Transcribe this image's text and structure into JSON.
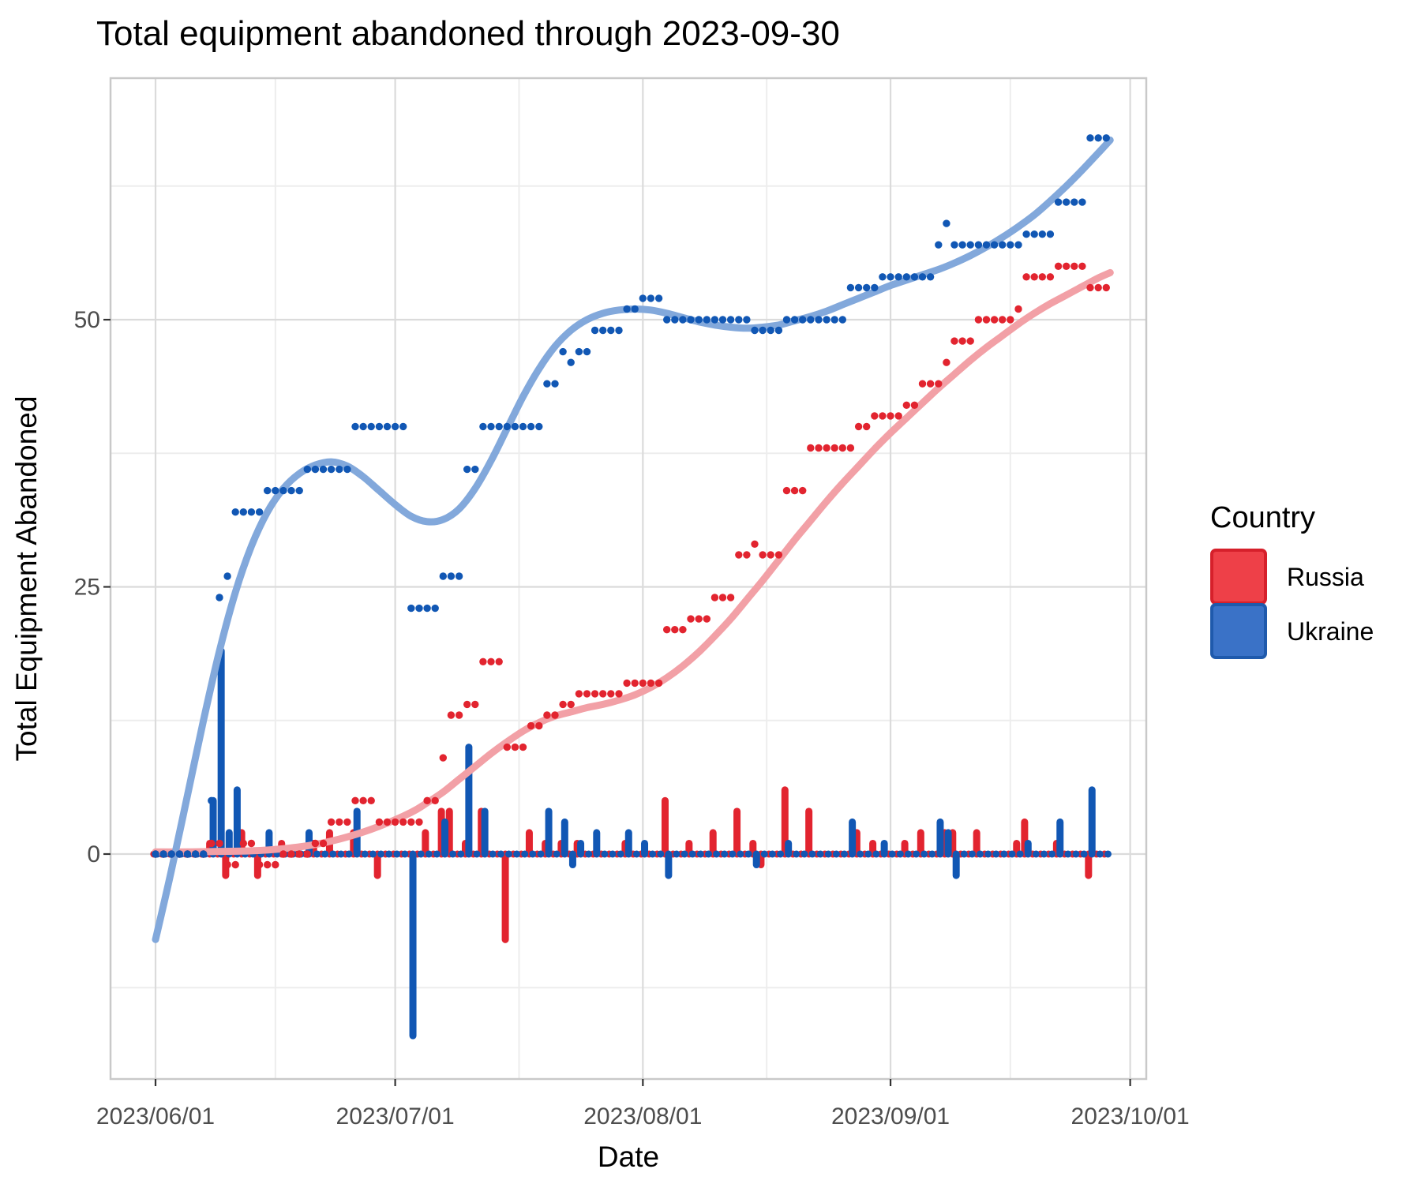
{
  "title": "Total equipment abandoned through 2023-09-30",
  "axes": {
    "x_label": "Date",
    "y_label": "Total Equipment Abandoned",
    "x_major_ticks": [
      {
        "day": 0,
        "label": "2023/06/01"
      },
      {
        "day": 30,
        "label": "2023/07/01"
      },
      {
        "day": 61,
        "label": "2023/08/01"
      },
      {
        "day": 92,
        "label": "2023/09/01"
      },
      {
        "day": 122,
        "label": "2023/10/01"
      }
    ],
    "x_minor_tick_days": [
      15,
      45.5,
      76.5,
      107
    ],
    "y_major_ticks": [
      0,
      25,
      50
    ],
    "y_minor_ticks": [
      -12.5,
      12.5,
      37.5,
      62.5
    ]
  },
  "legend": {
    "title": "Country",
    "items": [
      {
        "label": "Russia",
        "fill": "#ee4048",
        "border": "#d6202b"
      },
      {
        "label": "Ukraine",
        "fill": "#3a72c7",
        "border": "#1f5aac"
      }
    ]
  },
  "colors": {
    "russia": "#e2242f",
    "ukraine": "#1157b4",
    "russia_smooth": "#f2a0a6",
    "ukraine_smooth": "#82a8db",
    "grid_major": "#dbdbdb",
    "grid_minor": "#ededed",
    "panel_border": "#c9c9c9",
    "tick_mark": "#333333"
  },
  "chart_data": {
    "type": [
      "scatter",
      "bar",
      "line"
    ],
    "title": "Total equipment abandoned through 2023-09-30",
    "xlabel": "Date",
    "ylabel": "Total Equipment Abandoned",
    "x_start_date": "2023-06-01",
    "x_days_total": 122,
    "ylim": [
      -21,
      72.5
    ],
    "grid": true,
    "legend_position": "right",
    "bars_meaning": "daily change (difference of cumulative); zero-change days render as small dots on the y=0 baseline, Russia dodged left / Ukraine dodged right",
    "series": [
      {
        "name": "Russia",
        "cumulative_by_day": [
          0,
          0,
          0,
          0,
          0,
          0,
          0,
          1,
          1,
          -1,
          -1,
          1,
          1,
          -1,
          -1,
          -1,
          0,
          0,
          0,
          0,
          1,
          1,
          3,
          3,
          3,
          5,
          5,
          5,
          3,
          3,
          3,
          3,
          3,
          3,
          5,
          5,
          9,
          13,
          13,
          14,
          14,
          18,
          18,
          18,
          10,
          10,
          10,
          12,
          12,
          13,
          13,
          14,
          14,
          15,
          15,
          15,
          15,
          15,
          15,
          16,
          16,
          16,
          16,
          16,
          21,
          21,
          21,
          22,
          22,
          22,
          24,
          24,
          24,
          28,
          28,
          29,
          28,
          28,
          28,
          34,
          34,
          34,
          38,
          38,
          38,
          38,
          38,
          38,
          40,
          40,
          41,
          41,
          41,
          41,
          42,
          42,
          44,
          44,
          44,
          46,
          48,
          48,
          48,
          50,
          50,
          50,
          50,
          50,
          51,
          54,
          54,
          54,
          54,
          55,
          55,
          55,
          55,
          53,
          53,
          53
        ]
      },
      {
        "name": "Ukraine",
        "cumulative_by_day": [
          0,
          0,
          0,
          0,
          0,
          0,
          0,
          5,
          24,
          26,
          32,
          32,
          32,
          32,
          34,
          34,
          34,
          34,
          34,
          36,
          36,
          36,
          36,
          36,
          36,
          40,
          40,
          40,
          40,
          40,
          40,
          40,
          23,
          23,
          23,
          23,
          26,
          26,
          26,
          36,
          36,
          40,
          40,
          40,
          40,
          40,
          40,
          40,
          40,
          44,
          44,
          47,
          46,
          47,
          47,
          49,
          49,
          49,
          49,
          51,
          51,
          52,
          52,
          52,
          50,
          50,
          50,
          50,
          50,
          50,
          50,
          50,
          50,
          50,
          50,
          49,
          49,
          49,
          49,
          50,
          50,
          50,
          50,
          50,
          50,
          50,
          50,
          53,
          53,
          53,
          53,
          54,
          54,
          54,
          54,
          54,
          54,
          54,
          57,
          59,
          57,
          57,
          57,
          57,
          57,
          57,
          57,
          57,
          57,
          58,
          58,
          58,
          58,
          61,
          61,
          61,
          61,
          67,
          67,
          67
        ]
      }
    ],
    "smooth_curves": {
      "Russia": [
        [
          0,
          0.2
        ],
        [
          4,
          0.2
        ],
        [
          8,
          0.25
        ],
        [
          12,
          0.3
        ],
        [
          16,
          0.5
        ],
        [
          20,
          0.9
        ],
        [
          24,
          1.6
        ],
        [
          28,
          2.6
        ],
        [
          32,
          3.9
        ],
        [
          34,
          4.8
        ],
        [
          36,
          5.8
        ],
        [
          38,
          7
        ],
        [
          40,
          8.2
        ],
        [
          42,
          9.4
        ],
        [
          44,
          10.5
        ],
        [
          46,
          11.5
        ],
        [
          48,
          12.3
        ],
        [
          50,
          12.9
        ],
        [
          52,
          13.3
        ],
        [
          54,
          13.7
        ],
        [
          56,
          14
        ],
        [
          58,
          14.4
        ],
        [
          60,
          14.9
        ],
        [
          62,
          15.6
        ],
        [
          64,
          16.5
        ],
        [
          66,
          17.6
        ],
        [
          68,
          18.9
        ],
        [
          70,
          20.4
        ],
        [
          72,
          22
        ],
        [
          74,
          23.8
        ],
        [
          76,
          25.6
        ],
        [
          78,
          27.5
        ],
        [
          80,
          29.4
        ],
        [
          82,
          31.2
        ],
        [
          84,
          33
        ],
        [
          86,
          34.7
        ],
        [
          88,
          36.3
        ],
        [
          90,
          37.9
        ],
        [
          92,
          39.4
        ],
        [
          94,
          40.8
        ],
        [
          96,
          42.2
        ],
        [
          98,
          43.6
        ],
        [
          100,
          44.9
        ],
        [
          102,
          46.2
        ],
        [
          104,
          47.4
        ],
        [
          106,
          48.5
        ],
        [
          108,
          49.6
        ],
        [
          110,
          50.6
        ],
        [
          112,
          51.5
        ],
        [
          114,
          52.3
        ],
        [
          116,
          53.1
        ],
        [
          118,
          53.9
        ],
        [
          119.5,
          54.4
        ]
      ],
      "Ukraine": [
        [
          0,
          -8
        ],
        [
          2,
          -1.5
        ],
        [
          4,
          5.5
        ],
        [
          6,
          12.5
        ],
        [
          8,
          19
        ],
        [
          10,
          24.5
        ],
        [
          12,
          28.8
        ],
        [
          14,
          32
        ],
        [
          16,
          34.2
        ],
        [
          18,
          35.6
        ],
        [
          20,
          36.4
        ],
        [
          22,
          36.7
        ],
        [
          24,
          36.3
        ],
        [
          26,
          35.3
        ],
        [
          28,
          34
        ],
        [
          30,
          32.7
        ],
        [
          32,
          31.6
        ],
        [
          34,
          31.1
        ],
        [
          36,
          31.3
        ],
        [
          38,
          32.3
        ],
        [
          40,
          34.2
        ],
        [
          42,
          36.8
        ],
        [
          44,
          39.8
        ],
        [
          46,
          42.8
        ],
        [
          48,
          45.4
        ],
        [
          50,
          47.5
        ],
        [
          52,
          49
        ],
        [
          54,
          50
        ],
        [
          56,
          50.6
        ],
        [
          58,
          50.9
        ],
        [
          60,
          51
        ],
        [
          62,
          50.9
        ],
        [
          64,
          50.6
        ],
        [
          66,
          50.2
        ],
        [
          68,
          49.8
        ],
        [
          70,
          49.5
        ],
        [
          72,
          49.3
        ],
        [
          74,
          49.2
        ],
        [
          76,
          49.3
        ],
        [
          78,
          49.5
        ],
        [
          80,
          49.9
        ],
        [
          82,
          50.3
        ],
        [
          84,
          50.8
        ],
        [
          86,
          51.4
        ],
        [
          88,
          52
        ],
        [
          90,
          52.6
        ],
        [
          92,
          53.2
        ],
        [
          94,
          53.7
        ],
        [
          96,
          54.2
        ],
        [
          98,
          54.7
        ],
        [
          100,
          55.3
        ],
        [
          102,
          56
        ],
        [
          104,
          56.8
        ],
        [
          106,
          57.7
        ],
        [
          108,
          58.7
        ],
        [
          110,
          59.8
        ],
        [
          112,
          61.1
        ],
        [
          114,
          62.5
        ],
        [
          116,
          64
        ],
        [
          118,
          65.6
        ],
        [
          119.5,
          66.8
        ]
      ]
    }
  }
}
